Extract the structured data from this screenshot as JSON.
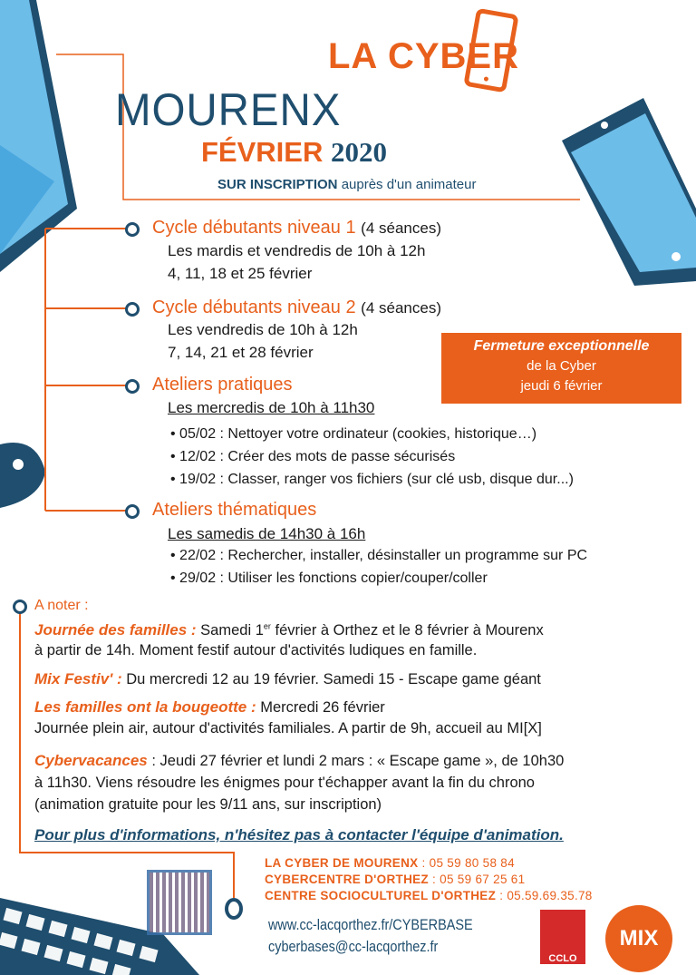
{
  "header": {
    "brand": "LA CYBER",
    "location": "MOURENX",
    "month": "FÉVRIER",
    "year": "2020",
    "registration_bold": "SUR INSCRIPTION",
    "registration_rest": "auprès d'un animateur"
  },
  "sections": [
    {
      "title": "Cycle débutants niveau 1",
      "note": "(4 séances)",
      "lines": [
        "Les mardis et vendredis de 10h à 12h",
        "4, 11, 18 et 25 février"
      ]
    },
    {
      "title": "Cycle débutants niveau 2",
      "note": "(4 séances)",
      "lines": [
        "Les vendredis de 10h à 12h",
        "7, 14, 21 et 28 février"
      ]
    },
    {
      "title": "Ateliers pratiques",
      "schedule": "Les mercredis de 10h à 11h30",
      "bullets": [
        "• 05/02 : Nettoyer votre ordinateur (cookies, historique…)",
        "• 12/02 : Créer des mots de passe sécurisés",
        "• 19/02 : Classer, ranger vos fichiers (sur clé usb, disque dur...)"
      ]
    },
    {
      "title": "Ateliers thématiques",
      "schedule": "Les samedis de 14h30 à 16h",
      "bullets": [
        "• 22/02 : Rechercher, installer, désinstaller un programme sur PC",
        "• 29/02 : Utiliser les fonctions copier/couper/coller"
      ]
    }
  ],
  "closure": {
    "line1": "Fermeture exceptionnelle",
    "line2": "de la Cyber",
    "line3": "jeudi 6 février"
  },
  "notes": {
    "heading": "A noter :",
    "items": [
      {
        "label": "Journée des familles :",
        "text": "Samedi 1",
        "sup": "er",
        "text2": "février à Orthez et le 8 février à Mourenx",
        "line2": "à partir de 14h. Moment festif autour d'activités ludiques en famille."
      },
      {
        "label": "Mix Festiv' :",
        "text": "Du mercredi 12 au 19 février. Samedi 15 - Escape game géant"
      },
      {
        "label": "Les familles ont la bougeotte :",
        "text": "Mercredi 26 février",
        "line2": "Journée plein air, autour d'activités familiales. A partir de 9h, accueil au MI[X]"
      },
      {
        "label": "Cybervacances",
        "text": ": Jeudi 27 février et lundi 2 mars : « Escape game », de 10h30",
        "line2": "à 11h30. Viens résoudre les énigmes pour t'échapper avant la fin du chrono",
        "line3": "(animation gratuite pour les 9/11 ans, sur inscription)"
      }
    ],
    "more_info": "Pour plus d'informations, n'hésitez pas à contacter l'équipe d'animation."
  },
  "contacts": [
    {
      "name": "LA CYBER DE MOURENX",
      "phone": ": 05 59 80 58 84"
    },
    {
      "name": "CYBERCENTRE D'ORTHEZ",
      "phone": ": 05 59 67 25 61"
    },
    {
      "name": "CENTRE SOCIOCULTUREL D'ORTHEZ",
      "phone": ": 05.59.69.35.78"
    }
  ],
  "website": "www.cc-lacqorthez.fr/CYBERBASE",
  "email": "cyberbases@cc-lacqorthez.fr",
  "logos": {
    "cclo": "CCLO",
    "mix": "MIX"
  },
  "colors": {
    "orange": "#e8601c",
    "navy": "#1f4e6e",
    "light_blue": "#5ab4e5"
  }
}
